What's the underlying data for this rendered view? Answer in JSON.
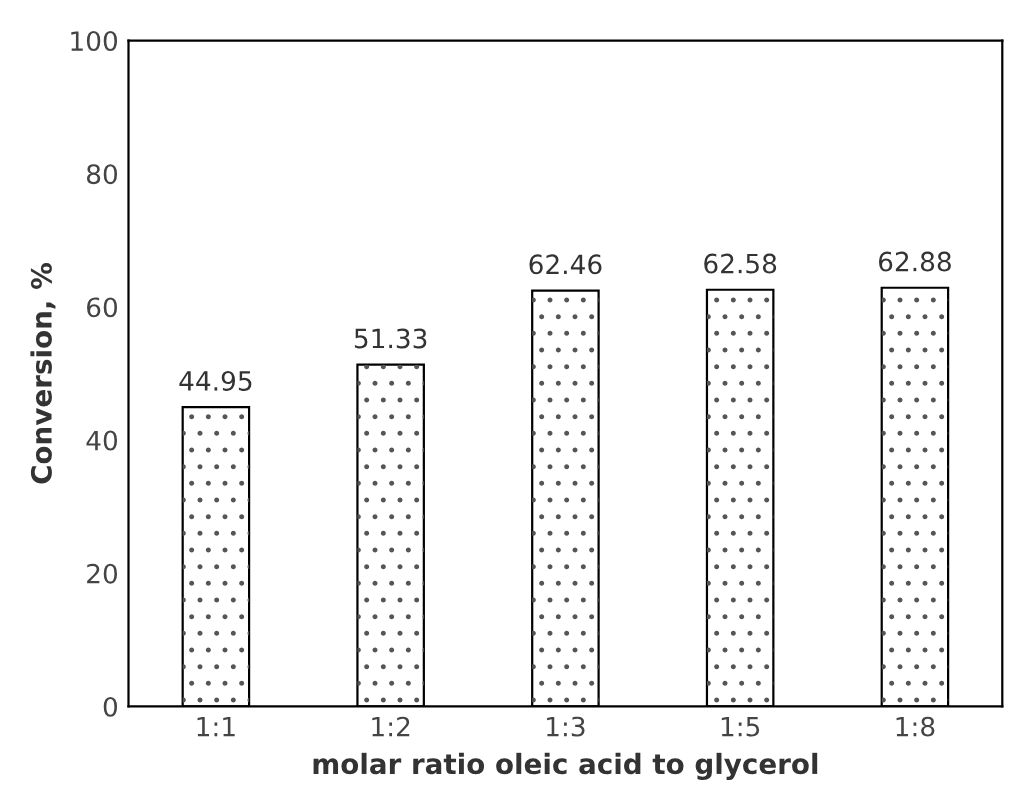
{
  "chart_data": {
    "type": "bar",
    "xlabel": "molar ratio oleic acid to glycerol",
    "ylabel": "Conversion, %",
    "categories": [
      "1:1",
      "1:2",
      "1:3",
      "1:5",
      "1:8"
    ],
    "values": [
      44.95,
      51.33,
      62.46,
      62.58,
      62.88
    ],
    "color": "#ffffff",
    "ylim": [
      0,
      100
    ],
    "yticks": [
      0,
      20,
      40,
      60,
      80,
      100
    ],
    "grid": false,
    "data_labels": true
  }
}
